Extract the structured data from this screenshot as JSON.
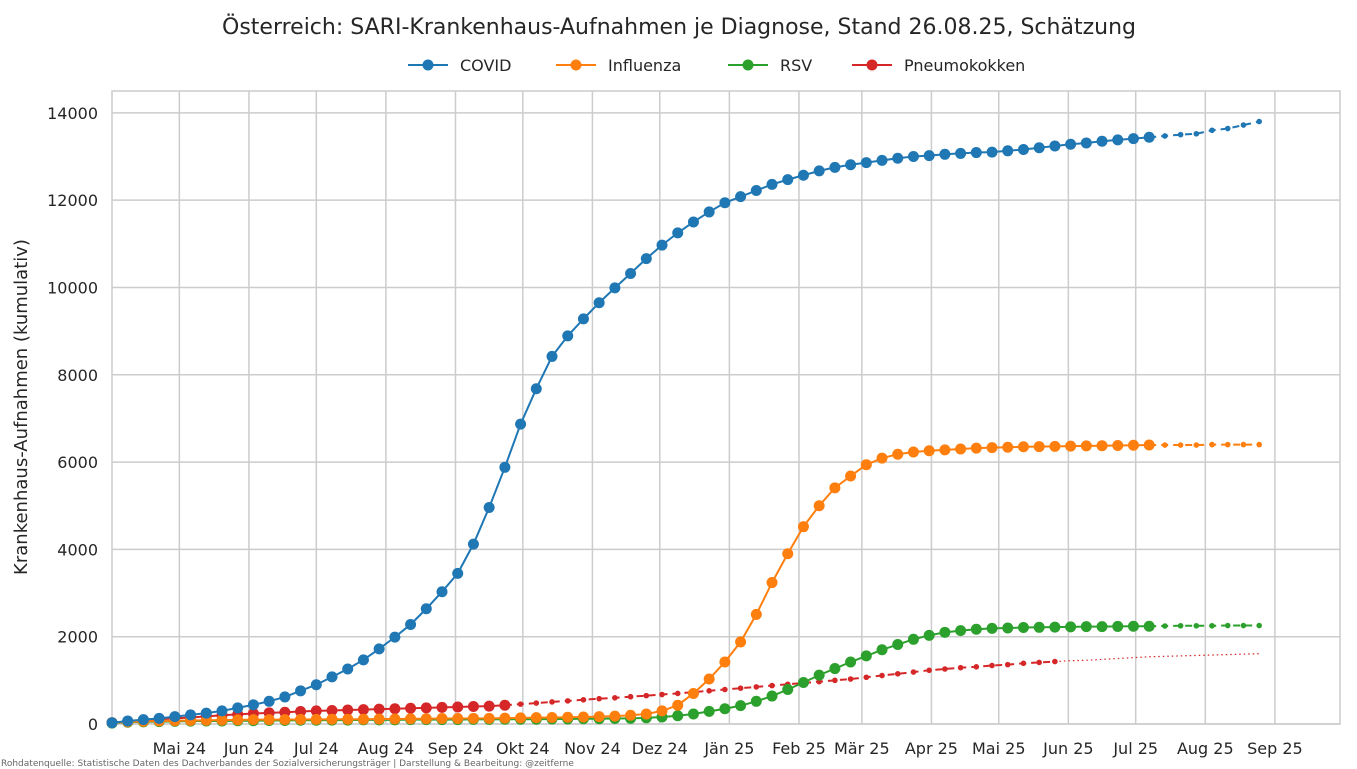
{
  "chart_data": {
    "type": "line",
    "title": "Österreich: SARI-Krankenhaus-Aufnahmen je Diagnose, Stand 26.08.25, Schätzung",
    "ylabel": "Krankenhaus-Aufnahmen (kumulativ)",
    "xlabel": "",
    "xlim": [
      "2024-04-01",
      "2025-09-30"
    ],
    "ylim": [
      0,
      14500
    ],
    "yticks": [
      0,
      2000,
      4000,
      6000,
      8000,
      10000,
      12000,
      14000
    ],
    "xticks": [
      {
        "date": "2024-05-01",
        "label": "Mai 24"
      },
      {
        "date": "2024-06-01",
        "label": "Jun 24"
      },
      {
        "date": "2024-07-01",
        "label": "Jul 24"
      },
      {
        "date": "2024-08-01",
        "label": "Aug 24"
      },
      {
        "date": "2024-09-01",
        "label": "Sep 24"
      },
      {
        "date": "2024-10-01",
        "label": "Okt 24"
      },
      {
        "date": "2024-11-01",
        "label": "Nov 24"
      },
      {
        "date": "2024-12-01",
        "label": "Dez 24"
      },
      {
        "date": "2025-01-01",
        "label": "Jän 25"
      },
      {
        "date": "2025-02-01",
        "label": "Feb 25"
      },
      {
        "date": "2025-03-01",
        "label": "Mär 25"
      },
      {
        "date": "2025-04-01",
        "label": "Apr 25"
      },
      {
        "date": "2025-05-01",
        "label": "Mai 25"
      },
      {
        "date": "2025-06-01",
        "label": "Jun 25"
      },
      {
        "date": "2025-07-01",
        "label": "Jul 25"
      },
      {
        "date": "2025-08-01",
        "label": "Aug 25"
      },
      {
        "date": "2025-09-01",
        "label": "Sep 25"
      }
    ],
    "grid": true,
    "legend_position": "top-center",
    "x": [
      "2024-04-01",
      "2024-04-08",
      "2024-04-15",
      "2024-04-22",
      "2024-04-29",
      "2024-05-06",
      "2024-05-13",
      "2024-05-20",
      "2024-05-27",
      "2024-06-03",
      "2024-06-10",
      "2024-06-17",
      "2024-06-24",
      "2024-07-01",
      "2024-07-08",
      "2024-07-15",
      "2024-07-22",
      "2024-07-29",
      "2024-08-05",
      "2024-08-12",
      "2024-08-19",
      "2024-08-26",
      "2024-09-02",
      "2024-09-09",
      "2024-09-16",
      "2024-09-23",
      "2024-09-30",
      "2024-10-07",
      "2024-10-14",
      "2024-10-21",
      "2024-10-28",
      "2024-11-04",
      "2024-11-11",
      "2024-11-18",
      "2024-11-25",
      "2024-12-02",
      "2024-12-09",
      "2024-12-16",
      "2024-12-23",
      "2024-12-30",
      "2025-01-06",
      "2025-01-13",
      "2025-01-20",
      "2025-01-27",
      "2025-02-03",
      "2025-02-10",
      "2025-02-17",
      "2025-02-24",
      "2025-03-03",
      "2025-03-10",
      "2025-03-17",
      "2025-03-24",
      "2025-03-31",
      "2025-04-07",
      "2025-04-14",
      "2025-04-21",
      "2025-04-28",
      "2025-05-05",
      "2025-05-12",
      "2025-05-19",
      "2025-05-26",
      "2025-06-02",
      "2025-06-09",
      "2025-06-16",
      "2025-06-23",
      "2025-06-30",
      "2025-07-07",
      "2025-07-14",
      "2025-07-21",
      "2025-07-28",
      "2025-08-04",
      "2025-08-11",
      "2025-08-18",
      "2025-08-25"
    ],
    "series": [
      {
        "name": "COVID",
        "color": "#1f77b4",
        "marker_count": 67,
        "estimate_from": 66,
        "values": [
          30,
          70,
          100,
          130,
          170,
          210,
          250,
          300,
          370,
          440,
          520,
          620,
          760,
          900,
          1080,
          1260,
          1470,
          1720,
          1990,
          2280,
          2640,
          3030,
          3450,
          4120,
          4960,
          5880,
          6870,
          7680,
          8420,
          8890,
          9280,
          9650,
          9990,
          10320,
          10660,
          10970,
          11250,
          11500,
          11730,
          11940,
          12080,
          12220,
          12360,
          12470,
          12570,
          12670,
          12750,
          12810,
          12860,
          12910,
          12960,
          13000,
          13020,
          13050,
          13070,
          13090,
          13100,
          13130,
          13160,
          13200,
          13240,
          13280,
          13310,
          13350,
          13380,
          13410,
          13440,
          13470,
          13500,
          13520,
          13600,
          13640,
          13720,
          13800
        ]
      },
      {
        "name": "Influenza",
        "color": "#ff7f0e",
        "marker_count": 67,
        "estimate_from": 66,
        "values": [
          30,
          50,
          60,
          70,
          75,
          80,
          85,
          90,
          95,
          100,
          100,
          100,
          105,
          105,
          110,
          110,
          110,
          115,
          115,
          120,
          120,
          125,
          125,
          130,
          130,
          135,
          140,
          145,
          150,
          155,
          160,
          170,
          180,
          200,
          230,
          300,
          430,
          700,
          1030,
          1420,
          1880,
          2510,
          3240,
          3900,
          4520,
          5000,
          5410,
          5680,
          5940,
          6090,
          6180,
          6230,
          6260,
          6280,
          6300,
          6320,
          6330,
          6340,
          6350,
          6355,
          6360,
          6365,
          6370,
          6375,
          6380,
          6385,
          6390,
          6390,
          6390,
          6390,
          6400,
          6400,
          6400,
          6400
        ]
      },
      {
        "name": "RSV",
        "color": "#2ca02c",
        "marker_count": 67,
        "estimate_from": 66,
        "values": [
          20,
          40,
          50,
          55,
          60,
          65,
          70,
          70,
          75,
          75,
          80,
          80,
          85,
          85,
          90,
          90,
          95,
          95,
          95,
          100,
          100,
          100,
          100,
          105,
          105,
          110,
          110,
          110,
          115,
          115,
          120,
          120,
          125,
          130,
          140,
          160,
          190,
          230,
          290,
          350,
          420,
          520,
          640,
          790,
          950,
          1120,
          1270,
          1420,
          1560,
          1700,
          1820,
          1940,
          2030,
          2100,
          2140,
          2170,
          2190,
          2200,
          2210,
          2215,
          2220,
          2225,
          2230,
          2230,
          2235,
          2240,
          2240,
          2245,
          2250,
          2250,
          2250,
          2255,
          2255,
          2255
        ]
      },
      {
        "name": "Pneumokokken",
        "color": "#d62728",
        "marker_count": 26,
        "estimate_from": 25,
        "dense_dots_to": 60,
        "values": [
          30,
          60,
          90,
          110,
          130,
          150,
          175,
          200,
          220,
          240,
          255,
          270,
          285,
          300,
          310,
          320,
          330,
          340,
          350,
          360,
          370,
          380,
          390,
          400,
          410,
          430,
          455,
          480,
          505,
          530,
          555,
          580,
          600,
          625,
          650,
          675,
          700,
          730,
          760,
          790,
          820,
          850,
          880,
          910,
          940,
          970,
          1000,
          1030,
          1070,
          1110,
          1150,
          1190,
          1230,
          1260,
          1290,
          1310,
          1340,
          1360,
          1390,
          1410,
          1430,
          1450,
          1460,
          1480,
          1500,
          1520,
          1540,
          1550,
          1560,
          1570,
          1580,
          1590,
          1600,
          1610
        ]
      }
    ],
    "source": "Rohdatenquelle: Statistische Daten des Dachverbandes der Sozialversicherungsträger | Darstellung & Bearbeitung: @zeitferne"
  }
}
